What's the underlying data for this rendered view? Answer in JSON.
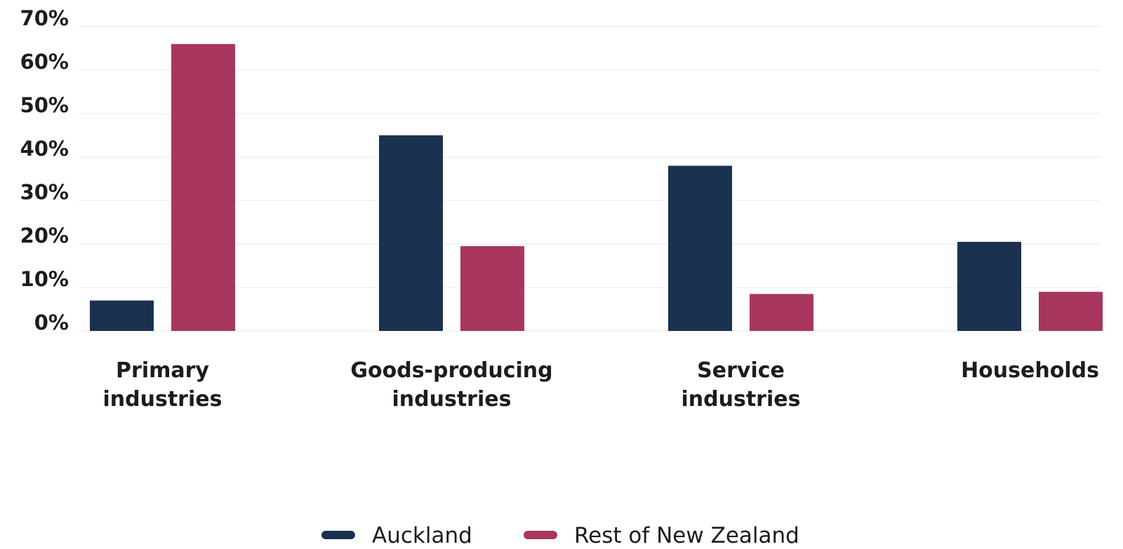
{
  "chart_data": {
    "type": "bar",
    "title": "",
    "xlabel": "",
    "ylabel": "",
    "ylim": [
      0,
      70
    ],
    "yticks": [
      "0%",
      "10%",
      "20%",
      "30%",
      "40%",
      "50%",
      "60%",
      "70%"
    ],
    "grid": true,
    "legend_position": "bottom-center",
    "categories": [
      [
        "Primary",
        "industries"
      ],
      [
        "Goods-producing",
        "industries"
      ],
      [
        "Service",
        "industries"
      ],
      [
        "Households"
      ]
    ],
    "series": [
      {
        "name": "Auckland",
        "color": "#1b3150",
        "values": [
          7,
          45,
          38,
          20.5
        ]
      },
      {
        "name": "Rest of New Zealand",
        "color": "#a9365f",
        "values": [
          66,
          19.5,
          8.5,
          9
        ]
      }
    ]
  }
}
